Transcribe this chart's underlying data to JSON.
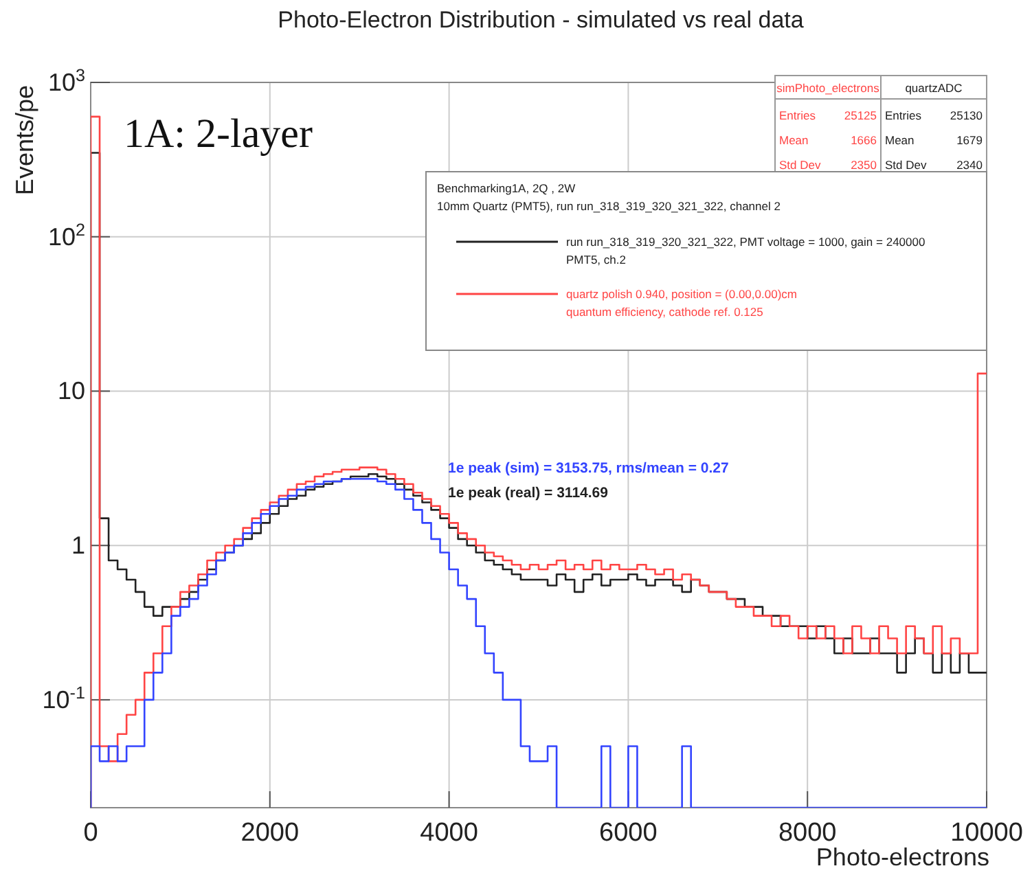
{
  "chart_data": {
    "type": "histogram",
    "title": "Photo-Electron Distribution - simulated vs real data",
    "xlabel": "Photo-electrons",
    "ylabel": "Events/pe",
    "log": "y",
    "grid": true,
    "legend": "top right",
    "legend_title": "Benchmarking1A, 2Q , 2W\n10mm Quartz (PMT5), run run_318_319_320_321_322, channel 2",
    "xlim": [
      0,
      10000
    ],
    "xticks": [
      0,
      2000,
      4000,
      6000,
      8000,
      10000
    ],
    "ylim": [
      0.02,
      1000
    ],
    "yticks": [
      {
        "value": 0.1,
        "label": "10$^{-1}$"
      },
      1,
      10,
      {
        "value": 100,
        "label": "10$^{2}$"
      },
      {
        "value": 1000,
        "label": "10$^{3}$"
      }
    ],
    "annotations": [
      "1A: 2-layer",
      "1e peak (sim) = 3153.75, rms/mean = 0.27",
      "1e peak (real) = 3114.69",
      "simPhoto_electrons",
      "Entries 25125",
      "Mean 1666",
      "Std Dev 2350",
      "quartzADC",
      "Entries 25130",
      "Mean 1679",
      "Std Dev 2340"
    ],
    "bins": [
      0,
      100,
      200,
      300,
      400,
      500,
      600,
      700,
      800,
      900,
      1000,
      1100,
      1200,
      1300,
      1400,
      1500,
      1600,
      1700,
      1800,
      1900,
      2000,
      2100,
      2200,
      2300,
      2400,
      2500,
      2600,
      2700,
      2800,
      2900,
      3000,
      3100,
      3200,
      3300,
      3400,
      3500,
      3600,
      3700,
      3800,
      3900,
      4000,
      4100,
      4200,
      4300,
      4400,
      4500,
      4600,
      4700,
      4800,
      4900,
      5000,
      5100,
      5200,
      5300,
      5400,
      5500,
      5600,
      5700,
      5800,
      5900,
      6000,
      6100,
      6200,
      6300,
      6400,
      6500,
      6600,
      6700,
      6800,
      6900,
      7000,
      7100,
      7200,
      7300,
      7400,
      7500,
      7600,
      7700,
      7800,
      7900,
      8000,
      8100,
      8200,
      8300,
      8400,
      8500,
      8600,
      8700,
      8800,
      8900,
      9000,
      9100,
      9200,
      9300,
      9400,
      9500,
      9600,
      9700,
      9800,
      9900,
      10000
    ],
    "series": [
      {
        "name": "run run_318_319_320_321_322, PMT voltage = 1000, gain = 240000\nPMT5, ch.2",
        "color": "#222222",
        "values": [
          350,
          1.5,
          0.8,
          0.7,
          0.6,
          0.5,
          0.4,
          0.35,
          0.4,
          0.4,
          0.45,
          0.5,
          0.6,
          0.7,
          0.8,
          0.9,
          1.0,
          1.1,
          1.2,
          1.4,
          1.6,
          1.8,
          2.0,
          2.1,
          2.3,
          2.4,
          2.5,
          2.6,
          2.7,
          2.8,
          2.8,
          2.9,
          2.8,
          2.7,
          2.5,
          2.3,
          2.1,
          1.9,
          1.7,
          1.5,
          1.3,
          1.1,
          1.0,
          0.9,
          0.8,
          0.75,
          0.7,
          0.65,
          0.6,
          0.6,
          0.6,
          0.55,
          0.65,
          0.6,
          0.5,
          0.6,
          0.65,
          0.55,
          0.6,
          0.6,
          0.65,
          0.6,
          0.55,
          0.6,
          0.6,
          0.55,
          0.5,
          0.6,
          0.55,
          0.5,
          0.5,
          0.45,
          0.45,
          0.4,
          0.4,
          0.35,
          0.35,
          0.3,
          0.3,
          0.3,
          0.25,
          0.3,
          0.25,
          0.2,
          0.25,
          0.2,
          0.2,
          0.25,
          0.2,
          0.2,
          0.15,
          0.2,
          0.25,
          0.2,
          0.15,
          0.2,
          0.15,
          0.2,
          0.15,
          0.15
        ]
      },
      {
        "name": "quartz polish 0.940, position = (0.00,0.00)cm\nquantum efficiency, cathode ref. 0.125",
        "color": "#ff4444",
        "values": [
          600,
          0.05,
          0.04,
          0.06,
          0.08,
          0.1,
          0.15,
          0.2,
          0.3,
          0.4,
          0.5,
          0.55,
          0.65,
          0.8,
          0.9,
          1.0,
          1.1,
          1.3,
          1.5,
          1.7,
          1.9,
          2.1,
          2.3,
          2.5,
          2.6,
          2.8,
          2.9,
          3.0,
          3.1,
          3.1,
          3.2,
          3.2,
          3.1,
          2.9,
          2.7,
          2.5,
          2.2,
          2.0,
          1.8,
          1.6,
          1.4,
          1.2,
          1.1,
          1.0,
          0.9,
          0.85,
          0.8,
          0.75,
          0.7,
          0.75,
          0.7,
          0.75,
          0.8,
          0.7,
          0.75,
          0.7,
          0.8,
          0.7,
          0.75,
          0.7,
          0.7,
          0.75,
          0.7,
          0.65,
          0.7,
          0.6,
          0.65,
          0.6,
          0.55,
          0.5,
          0.5,
          0.45,
          0.4,
          0.4,
          0.35,
          0.35,
          0.3,
          0.35,
          0.3,
          0.25,
          0.3,
          0.25,
          0.3,
          0.25,
          0.2,
          0.3,
          0.25,
          0.2,
          0.3,
          0.25,
          0.2,
          0.3,
          0.25,
          0.2,
          0.3,
          0.2,
          0.25,
          0.2,
          0.2,
          13
        ]
      },
      {
        "color": "#3344ff",
        "values": [
          0.05,
          0.04,
          0.05,
          0.04,
          0.05,
          0.05,
          0.1,
          0.15,
          0.2,
          0.35,
          0.4,
          0.45,
          0.55,
          0.65,
          0.8,
          0.9,
          1.0,
          1.2,
          1.4,
          1.6,
          1.8,
          2.0,
          2.1,
          2.3,
          2.4,
          2.5,
          2.6,
          2.6,
          2.7,
          2.7,
          2.7,
          2.7,
          2.6,
          2.5,
          2.3,
          2.0,
          1.7,
          1.4,
          1.1,
          0.9,
          0.7,
          0.55,
          0.45,
          0.3,
          0.2,
          0.15,
          0.1,
          0.1,
          0.05,
          0.04,
          0.04,
          0.05,
          null,
          null,
          null,
          null,
          null,
          0.05,
          null,
          null,
          0.05,
          null,
          null,
          null,
          null,
          null,
          0.05,
          null,
          null,
          null,
          null,
          null,
          null,
          null,
          null,
          null,
          null,
          null,
          null,
          null,
          null,
          null,
          null,
          null,
          null,
          null,
          null,
          null,
          null,
          null,
          null,
          null,
          null,
          null,
          null,
          null,
          null,
          null,
          null,
          null
        ]
      }
    ]
  }
}
